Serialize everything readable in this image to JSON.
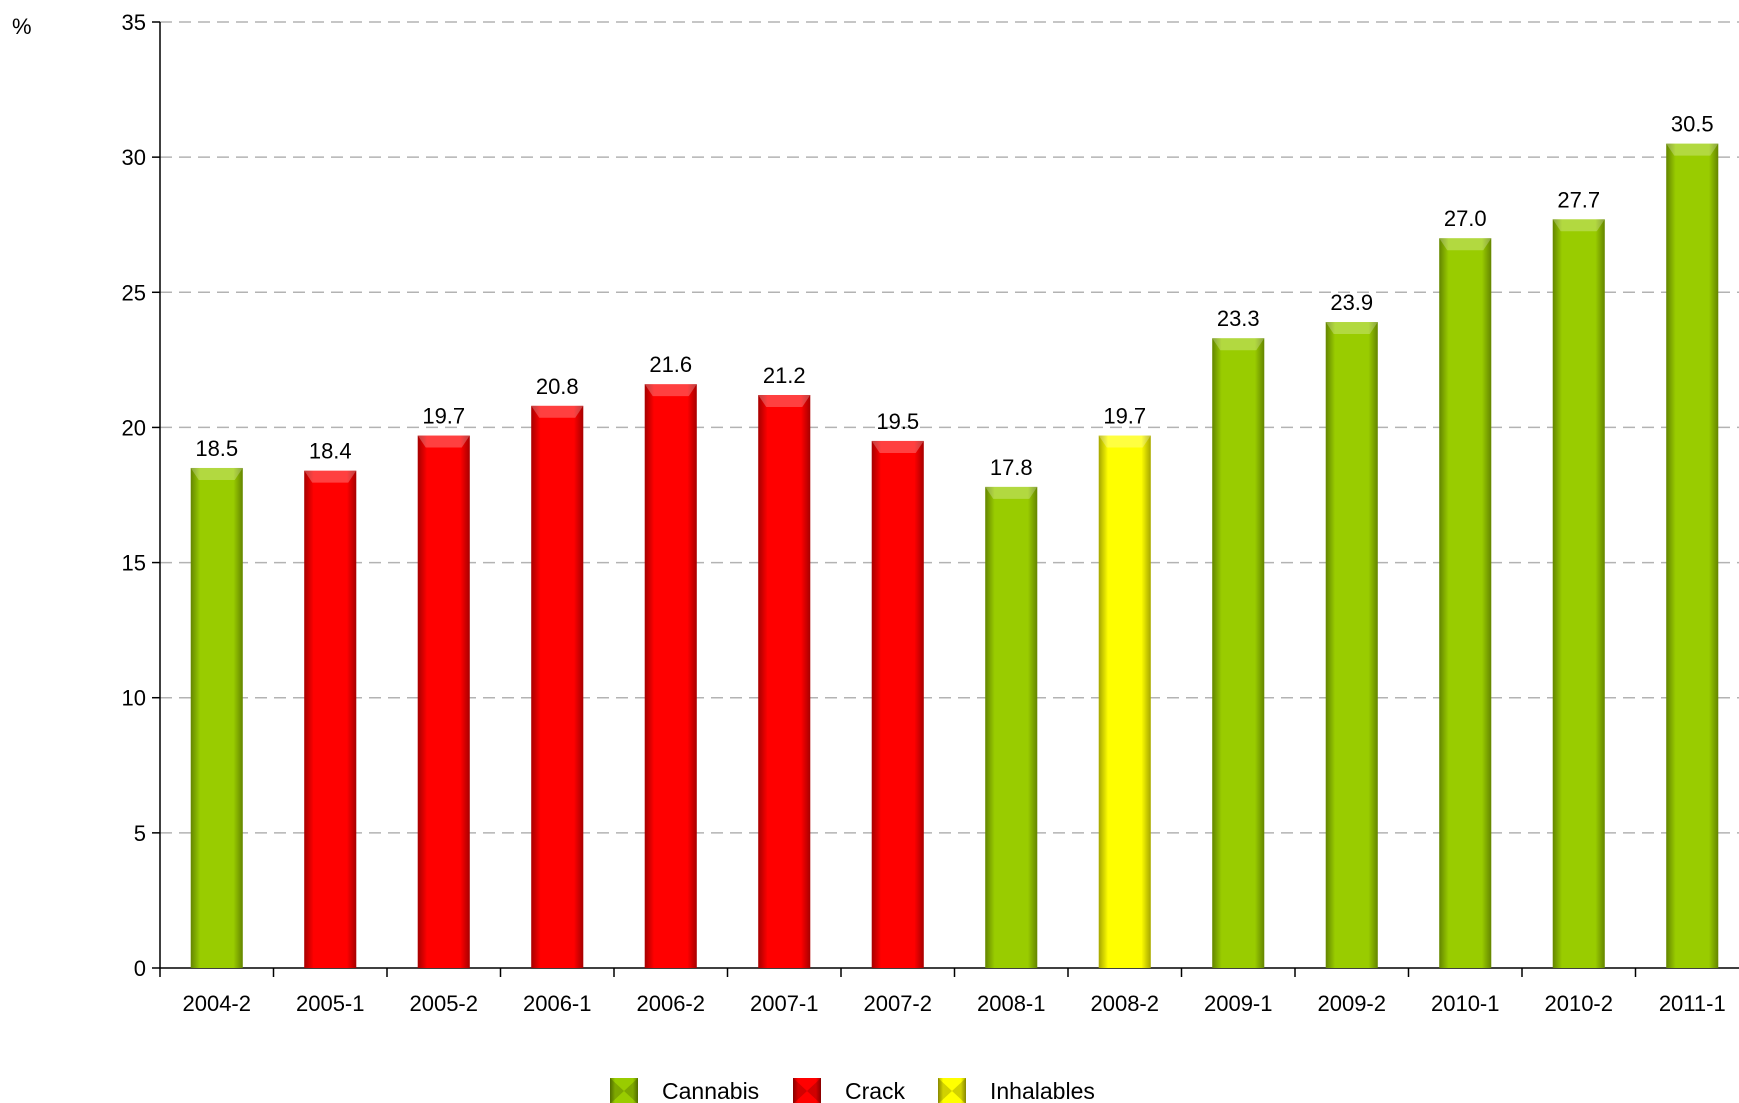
{
  "chart_data": {
    "type": "bar",
    "ylabel": "%",
    "ylim": [
      0,
      35
    ],
    "yticks": [
      0,
      5,
      10,
      15,
      20,
      25,
      30,
      35
    ],
    "grid": "horizontal-dashed",
    "legend_placement": "bottom-center",
    "categories": [
      "2004-2",
      "2005-1",
      "2005-2",
      "2006-1",
      "2006-2",
      "2007-1",
      "2007-2",
      "2008-1",
      "2008-2",
      "2009-1",
      "2009-2",
      "2010-1",
      "2010-2",
      "2011-1"
    ],
    "values": [
      18.5,
      18.4,
      19.7,
      20.8,
      21.6,
      21.2,
      19.5,
      17.8,
      19.7,
      23.3,
      23.9,
      27.0,
      27.7,
      30.5
    ],
    "value_labels": [
      "18.5",
      "18.4",
      "19.7",
      "20.8",
      "21.6",
      "21.2",
      "19.5",
      "17.8",
      "19.7",
      "23.3",
      "23.9",
      "27.0",
      "27.7",
      "30.5"
    ],
    "bar_series": [
      "Cannabis",
      "Crack",
      "Crack",
      "Crack",
      "Crack",
      "Crack",
      "Crack",
      "Cannabis",
      "Inhalables",
      "Cannabis",
      "Cannabis",
      "Cannabis",
      "Cannabis",
      "Cannabis"
    ],
    "legend": [
      {
        "name": "Cannabis",
        "color": "#99CC00"
      },
      {
        "name": "Crack",
        "color": "#FF0000"
      },
      {
        "name": "Inhalables",
        "color": "#FFFF00"
      }
    ]
  }
}
